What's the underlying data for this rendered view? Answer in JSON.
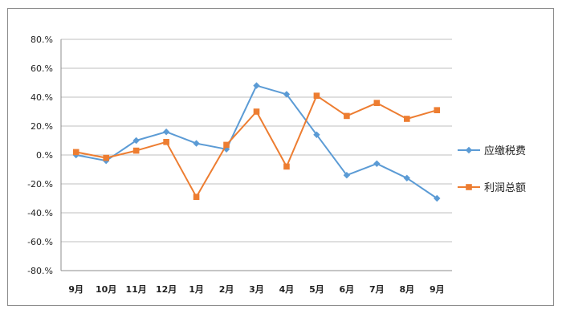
{
  "chart_data": {
    "type": "line",
    "categories": [
      "9月",
      "10月",
      "11月",
      "12月",
      "1月",
      "2月",
      "3月",
      "4月",
      "5月",
      "6月",
      "7月",
      "8月",
      "9月"
    ],
    "y_tick_labels": [
      "80.%",
      "60.%",
      "40.%",
      "20.%",
      "0.%",
      "-20.%",
      "-40.%",
      "-60.%",
      "-80.%"
    ],
    "ylim": [
      -80,
      80
    ],
    "y_step": 20,
    "grid": true,
    "legend_position": "right",
    "series": [
      {
        "name": "应缴税费",
        "color": "#5b9bd5",
        "marker": "diamond",
        "values": [
          0,
          -4,
          10,
          16,
          8,
          4,
          48,
          42,
          14,
          -14,
          -6,
          -16,
          -30
        ]
      },
      {
        "name": "利润总额",
        "color": "#ed7d31",
        "marker": "square",
        "values": [
          2,
          -2,
          3,
          9,
          -29,
          7,
          30,
          -8,
          41,
          27,
          36,
          25,
          31
        ]
      }
    ]
  }
}
